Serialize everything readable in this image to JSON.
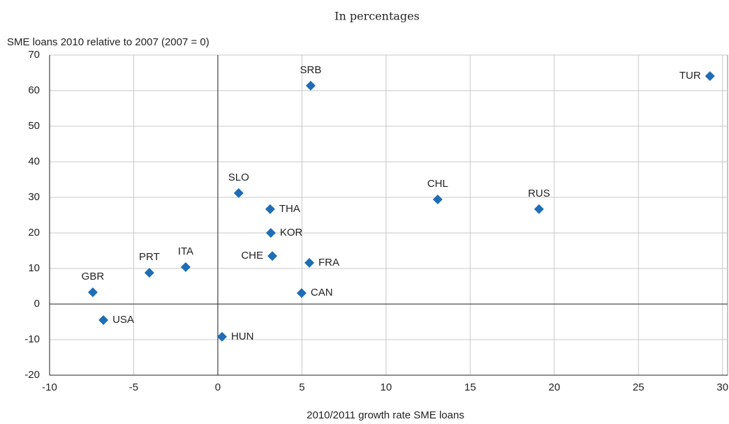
{
  "chart_data": {
    "type": "scatter",
    "subtitle": "In percentages",
    "y_label": "SME loans 2010 relative to 2007 (2007 = 0)",
    "x_label": "2010/2011 growth rate SME loans",
    "labels": [
      "TUR",
      "SRB",
      "CHL",
      "RUS",
      "SLO",
      "THA",
      "KOR",
      "CHE",
      "FRA",
      "CAN",
      "ITA",
      "PRT",
      "GBR",
      "USA",
      "HUN"
    ],
    "x": [
      29.25,
      5.52,
      13.07,
      19.09,
      1.24,
      3.11,
      3.15,
      3.24,
      5.44,
      4.98,
      -1.91,
      -4.07,
      -7.43,
      -6.8,
      0.25
    ],
    "values": [
      64.1,
      61.4,
      29.4,
      26.7,
      31.2,
      26.7,
      20,
      13.5,
      11.6,
      3.1,
      10.4,
      8.8,
      3.3,
      -4.5,
      -9.2
    ],
    "color": "#1f6db5",
    "xlim": [
      -10,
      30.3
    ],
    "xticks": [
      -10,
      -5,
      0,
      5,
      10,
      15,
      20,
      25,
      30
    ],
    "ylim": [
      -20,
      70
    ],
    "yticks": [
      -20,
      -10,
      0,
      10,
      20,
      30,
      40,
      50,
      60,
      70
    ],
    "grid": true
  }
}
